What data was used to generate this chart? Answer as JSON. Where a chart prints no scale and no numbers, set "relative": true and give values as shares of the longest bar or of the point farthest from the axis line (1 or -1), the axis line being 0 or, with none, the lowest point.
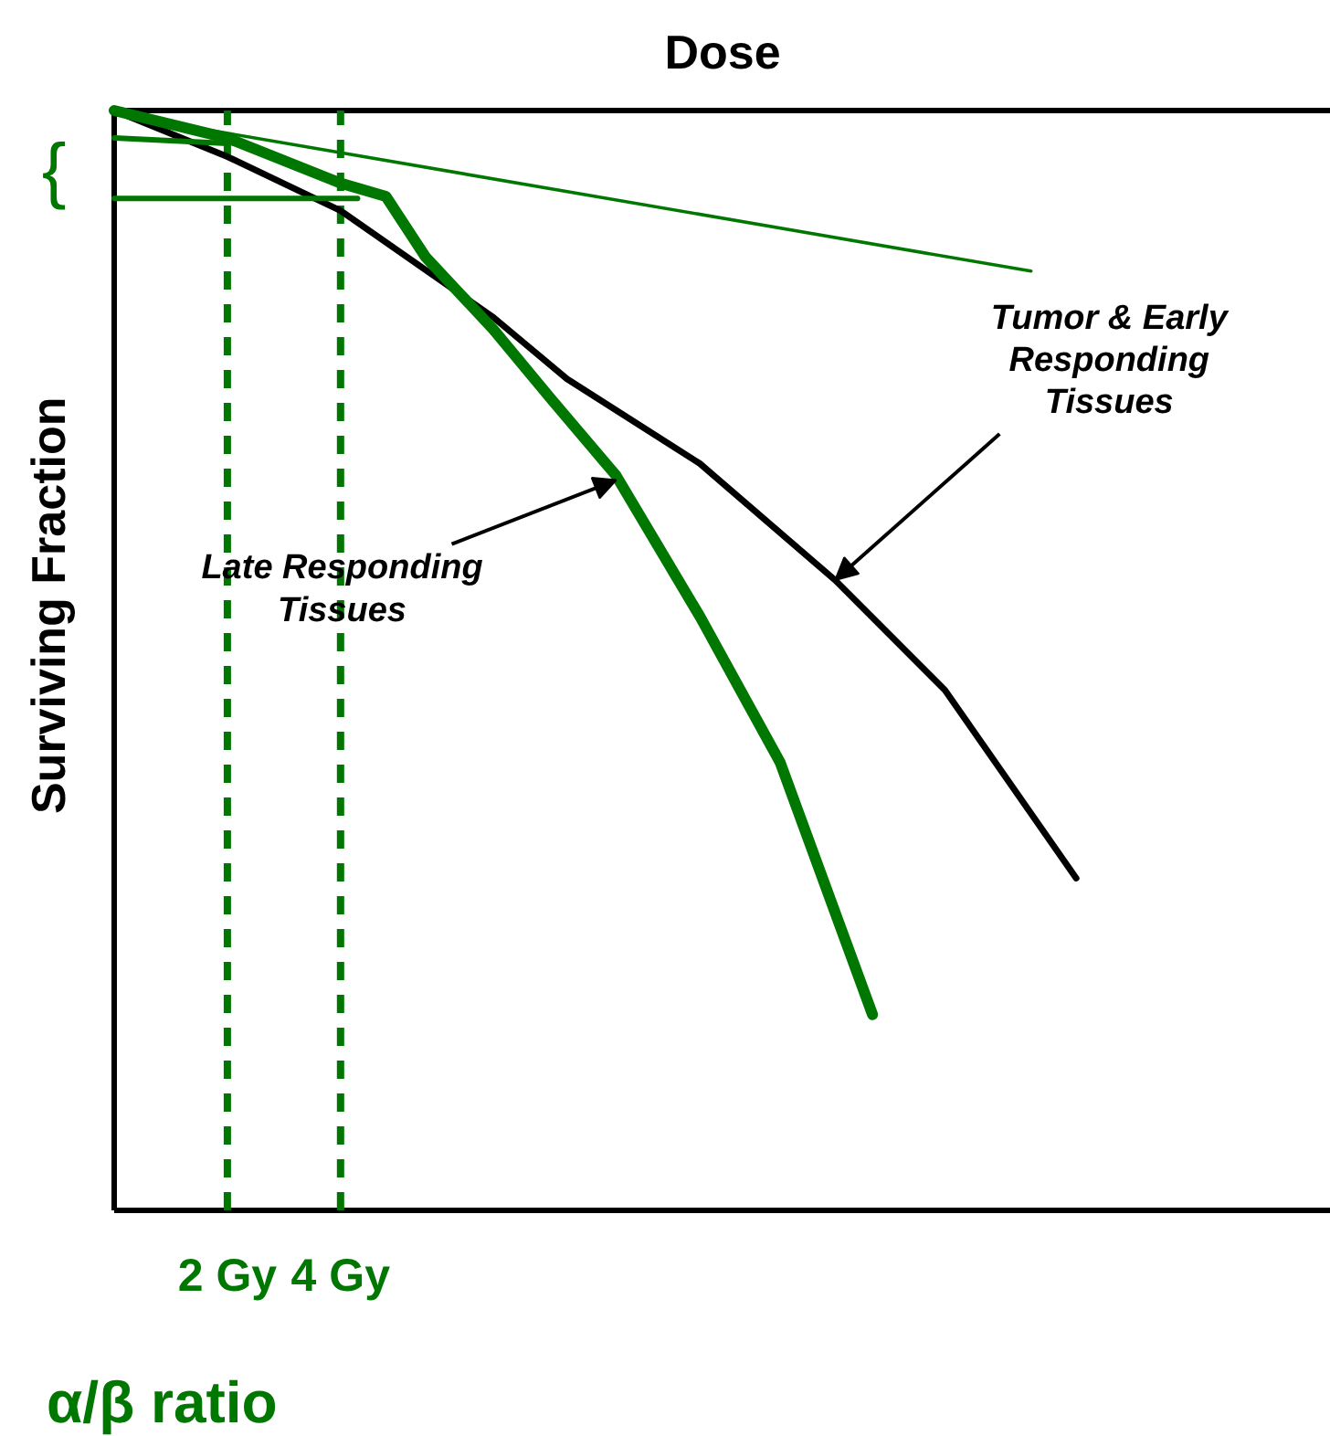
{
  "chart_data": {
    "type": "line",
    "relative": true,
    "xlabel": "Dose",
    "ylabel": "Surviving Fraction",
    "xlim": [
      0,
      21.5
    ],
    "xticks": [
      {
        "value": 2,
        "label": "2 Gy"
      },
      {
        "value": 4,
        "label": "4 Gy"
      }
    ],
    "tick_labels": "x",
    "marker": "none",
    "series": [
      {
        "color": "#000000",
        "x": [
          0,
          2.0,
          4.0,
          6.7,
          8.0,
          10.35,
          12.74,
          14.68,
          17.0
        ],
        "values": [
          1.0,
          0.958,
          0.909,
          0.812,
          0.756,
          0.679,
          0.573,
          0.473,
          0.302
        ]
      },
      {
        "color": "#007700",
        "x": [
          0,
          2.0,
          4.0,
          4.8,
          5.5,
          6.7,
          7.7,
          8.87,
          10.35,
          11.77,
          13.4
        ],
        "values": [
          1.0,
          0.975,
          0.934,
          0.922,
          0.867,
          0.801,
          0.739,
          0.668,
          0.54,
          0.407,
          0.178
        ]
      },
      {
        "color": "#007700",
        "x": [
          0,
          16.2
        ],
        "values": [
          0.997,
          0.854
        ]
      },
      {
        "color": "#007700",
        "x": [
          0,
          2.0
        ],
        "values": [
          0.975,
          0.97
        ]
      },
      {
        "color": "#007700",
        "x": [
          0,
          4.3
        ],
        "values": [
          0.92,
          0.92
        ]
      }
    ],
    "ref_lines": [
      {
        "axis": "x",
        "value": 2,
        "color": "#007700",
        "line_style": "dashed"
      },
      {
        "axis": "x",
        "value": 4,
        "color": "#007700",
        "line_style": "dashed"
      }
    ],
    "annotations": [
      {
        "text": "Late Responding\nTissues",
        "x": 8.87,
        "y": 0.664
      },
      {
        "text": "Tumor & Early\nResponding\nTissues",
        "x": 12.74,
        "y": 0.573
      },
      "{",
      "α/β ratio"
    ]
  }
}
